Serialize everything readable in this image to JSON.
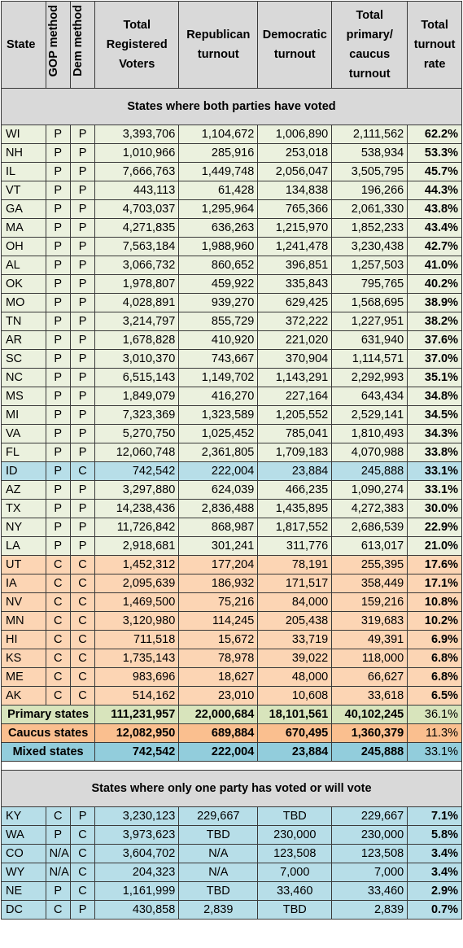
{
  "headers": {
    "state": "State",
    "gop_method": "GOP method",
    "dem_method": "Dem method",
    "total_registered": "Total Registered Voters",
    "rep_turnout": "Republican turnout",
    "dem_turnout": "Democratic turnout",
    "total_turnout": "Total primary/ caucus turnout",
    "rate": "Total turnout rate"
  },
  "sections": {
    "both": "States where both parties have voted",
    "one": "States where only one party has voted or will vote"
  },
  "both_rows": [
    {
      "state": "WI",
      "gop": "P",
      "dem": "P",
      "reg": "3,393,706",
      "rep": "1,104,672",
      "demt": "1,006,890",
      "total": "2,111,562",
      "rate": "62.2%",
      "type": "pp"
    },
    {
      "state": "NH",
      "gop": "P",
      "dem": "P",
      "reg": "1,010,966",
      "rep": "285,916",
      "demt": "253,018",
      "total": "538,934",
      "rate": "53.3%",
      "type": "pp"
    },
    {
      "state": "IL",
      "gop": "P",
      "dem": "P",
      "reg": "7,666,763",
      "rep": "1,449,748",
      "demt": "2,056,047",
      "total": "3,505,795",
      "rate": "45.7%",
      "type": "pp"
    },
    {
      "state": "VT",
      "gop": "P",
      "dem": "P",
      "reg": "443,113",
      "rep": "61,428",
      "demt": "134,838",
      "total": "196,266",
      "rate": "44.3%",
      "type": "pp"
    },
    {
      "state": "GA",
      "gop": "P",
      "dem": "P",
      "reg": "4,703,037",
      "rep": "1,295,964",
      "demt": "765,366",
      "total": "2,061,330",
      "rate": "43.8%",
      "type": "pp"
    },
    {
      "state": "MA",
      "gop": "P",
      "dem": "P",
      "reg": "4,271,835",
      "rep": "636,263",
      "demt": "1,215,970",
      "total": "1,852,233",
      "rate": "43.4%",
      "type": "pp"
    },
    {
      "state": "OH",
      "gop": "P",
      "dem": "P",
      "reg": "7,563,184",
      "rep": "1,988,960",
      "demt": "1,241,478",
      "total": "3,230,438",
      "rate": "42.7%",
      "type": "pp"
    },
    {
      "state": "AL",
      "gop": "P",
      "dem": "P",
      "reg": "3,066,732",
      "rep": "860,652",
      "demt": "396,851",
      "total": "1,257,503",
      "rate": "41.0%",
      "type": "pp"
    },
    {
      "state": "OK",
      "gop": "P",
      "dem": "P",
      "reg": "1,978,807",
      "rep": "459,922",
      "demt": "335,843",
      "total": "795,765",
      "rate": "40.2%",
      "type": "pp"
    },
    {
      "state": "MO",
      "gop": "P",
      "dem": "P",
      "reg": "4,028,891",
      "rep": "939,270",
      "demt": "629,425",
      "total": "1,568,695",
      "rate": "38.9%",
      "type": "pp"
    },
    {
      "state": "TN",
      "gop": "P",
      "dem": "P",
      "reg": "3,214,797",
      "rep": "855,729",
      "demt": "372,222",
      "total": "1,227,951",
      "rate": "38.2%",
      "type": "pp"
    },
    {
      "state": "AR",
      "gop": "P",
      "dem": "P",
      "reg": "1,678,828",
      "rep": "410,920",
      "demt": "221,020",
      "total": "631,940",
      "rate": "37.6%",
      "type": "pp"
    },
    {
      "state": "SC",
      "gop": "P",
      "dem": "P",
      "reg": "3,010,370",
      "rep": "743,667",
      "demt": "370,904",
      "total": "1,114,571",
      "rate": "37.0%",
      "type": "pp"
    },
    {
      "state": "NC",
      "gop": "P",
      "dem": "P",
      "reg": "6,515,143",
      "rep": "1,149,702",
      "demt": "1,143,291",
      "total": "2,292,993",
      "rate": "35.1%",
      "type": "pp"
    },
    {
      "state": "MS",
      "gop": "P",
      "dem": "P",
      "reg": "1,849,079",
      "rep": "416,270",
      "demt": "227,164",
      "total": "643,434",
      "rate": "34.8%",
      "type": "pp"
    },
    {
      "state": "MI",
      "gop": "P",
      "dem": "P",
      "reg": "7,323,369",
      "rep": "1,323,589",
      "demt": "1,205,552",
      "total": "2,529,141",
      "rate": "34.5%",
      "type": "pp"
    },
    {
      "state": "VA",
      "gop": "P",
      "dem": "P",
      "reg": "5,270,750",
      "rep": "1,025,452",
      "demt": "785,041",
      "total": "1,810,493",
      "rate": "34.3%",
      "type": "pp"
    },
    {
      "state": "FL",
      "gop": "P",
      "dem": "P",
      "reg": "12,060,748",
      "rep": "2,361,805",
      "demt": "1,709,183",
      "total": "4,070,988",
      "rate": "33.8%",
      "type": "pp"
    },
    {
      "state": "ID",
      "gop": "P",
      "dem": "C",
      "reg": "742,542",
      "rep": "222,004",
      "demt": "23,884",
      "total": "245,888",
      "rate": "33.1%",
      "type": "mx"
    },
    {
      "state": "AZ",
      "gop": "P",
      "dem": "P",
      "reg": "3,297,880",
      "rep": "624,039",
      "demt": "466,235",
      "total": "1,090,274",
      "rate": "33.1%",
      "type": "pp"
    },
    {
      "state": "TX",
      "gop": "P",
      "dem": "P",
      "reg": "14,238,436",
      "rep": "2,836,488",
      "demt": "1,435,895",
      "total": "4,272,383",
      "rate": "30.0%",
      "type": "pp"
    },
    {
      "state": "NY",
      "gop": "P",
      "dem": "P",
      "reg": "11,726,842",
      "rep": "868,987",
      "demt": "1,817,552",
      "total": "2,686,539",
      "rate": "22.9%",
      "type": "pp"
    },
    {
      "state": "LA",
      "gop": "P",
      "dem": "P",
      "reg": "2,918,681",
      "rep": "301,241",
      "demt": "311,776",
      "total": "613,017",
      "rate": "21.0%",
      "type": "pp"
    },
    {
      "state": "UT",
      "gop": "C",
      "dem": "C",
      "reg": "1,452,312",
      "rep": "177,204",
      "demt": "78,191",
      "total": "255,395",
      "rate": "17.6%",
      "type": "cc"
    },
    {
      "state": "IA",
      "gop": "C",
      "dem": "C",
      "reg": "2,095,639",
      "rep": "186,932",
      "demt": "171,517",
      "total": "358,449",
      "rate": "17.1%",
      "type": "cc"
    },
    {
      "state": "NV",
      "gop": "C",
      "dem": "C",
      "reg": "1,469,500",
      "rep": "75,216",
      "demt": "84,000",
      "total": "159,216",
      "rate": "10.8%",
      "type": "cc"
    },
    {
      "state": "MN",
      "gop": "C",
      "dem": "C",
      "reg": "3,120,980",
      "rep": "114,245",
      "demt": "205,438",
      "total": "319,683",
      "rate": "10.2%",
      "type": "cc"
    },
    {
      "state": "HI",
      "gop": "C",
      "dem": "C",
      "reg": "711,518",
      "rep": "15,672",
      "demt": "33,719",
      "total": "49,391",
      "rate": "6.9%",
      "type": "cc"
    },
    {
      "state": "KS",
      "gop": "C",
      "dem": "C",
      "reg": "1,735,143",
      "rep": "78,978",
      "demt": "39,022",
      "total": "118,000",
      "rate": "6.8%",
      "type": "cc"
    },
    {
      "state": "ME",
      "gop": "C",
      "dem": "C",
      "reg": "983,696",
      "rep": "18,627",
      "demt": "48,000",
      "total": "66,627",
      "rate": "6.8%",
      "type": "cc"
    },
    {
      "state": "AK",
      "gop": "C",
      "dem": "C",
      "reg": "514,162",
      "rep": "23,010",
      "demt": "10,608",
      "total": "33,618",
      "rate": "6.5%",
      "type": "cc"
    }
  ],
  "totals": [
    {
      "label": "Primary states",
      "reg": "111,231,957",
      "rep": "22,000,684",
      "demt": "18,101,561",
      "total": "40,102,245",
      "rate": "36.1%",
      "type": "tot-p"
    },
    {
      "label": "Caucus states",
      "reg": "12,082,950",
      "rep": "689,884",
      "demt": "670,495",
      "total": "1,360,379",
      "rate": "11.3%",
      "type": "tot-c"
    },
    {
      "label": "Mixed states",
      "reg": "742,542",
      "rep": "222,004",
      "demt": "23,884",
      "total": "245,888",
      "rate": "33.1%",
      "type": "tot-m"
    }
  ],
  "one_rows": [
    {
      "state": "KY",
      "gop": "C",
      "dem": "P",
      "reg": "3,230,123",
      "rep": "229,667",
      "demt": "TBD",
      "total": "229,667",
      "rate": "7.1%"
    },
    {
      "state": "WA",
      "gop": "P",
      "dem": "C",
      "reg": "3,973,623",
      "rep": "TBD",
      "demt": "230,000",
      "total": "230,000",
      "rate": "5.8%"
    },
    {
      "state": "CO",
      "gop": "N/A",
      "dem": "C",
      "reg": "3,604,702",
      "rep": "N/A",
      "demt": "123,508",
      "total": "123,508",
      "rate": "3.4%"
    },
    {
      "state": "WY",
      "gop": "N/A",
      "dem": "C",
      "reg": "204,323",
      "rep": "N/A",
      "demt": "7,000",
      "total": "7,000",
      "rate": "3.4%"
    },
    {
      "state": "NE",
      "gop": "P",
      "dem": "C",
      "reg": "1,161,999",
      "rep": "TBD",
      "demt": "33,460",
      "total": "33,460",
      "rate": "2.9%"
    },
    {
      "state": "DC",
      "gop": "C",
      "dem": "P",
      "reg": "430,858",
      "rep": "2,839",
      "demt": "TBD",
      "total": "2,839",
      "rate": "0.7%"
    }
  ],
  "colors": {
    "header": "#d9d9d9",
    "primary_row": "#ebf1de",
    "caucus_row": "#fcd5b4",
    "mixed_row": "#b7dee8",
    "primary_total": "#d8e4bc",
    "caucus_total": "#fabf8f",
    "mixed_total": "#92cddc"
  }
}
